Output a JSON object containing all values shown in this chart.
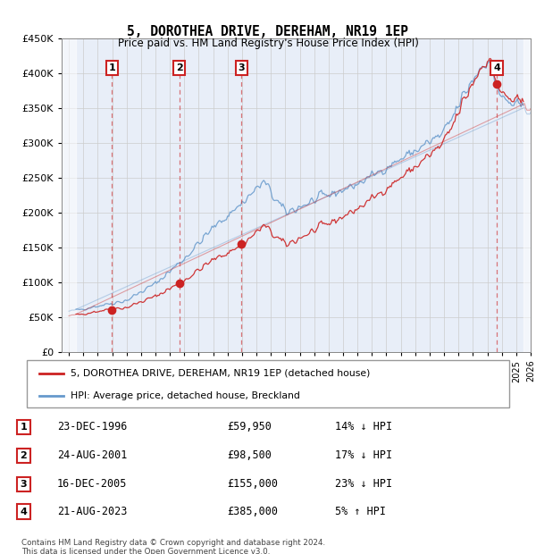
{
  "title": "5, DOROTHEA DRIVE, DEREHAM, NR19 1EP",
  "subtitle": "Price paid vs. HM Land Registry's House Price Index (HPI)",
  "xlim_start": 1993.5,
  "xlim_end": 2026.0,
  "ylim": [
    0,
    450000
  ],
  "yticks": [
    0,
    50000,
    100000,
    150000,
    200000,
    250000,
    300000,
    350000,
    400000,
    450000
  ],
  "ytick_labels": [
    "£0",
    "£50K",
    "£100K",
    "£150K",
    "£200K",
    "£250K",
    "£300K",
    "£350K",
    "£400K",
    "£450K"
  ],
  "sales": [
    {
      "date": 1996.98,
      "price": 59950,
      "label": "1",
      "hpi_pct": "14% ↓ HPI",
      "date_str": "23-DEC-1996",
      "price_str": "£59,950"
    },
    {
      "date": 2001.65,
      "price": 98500,
      "label": "2",
      "hpi_pct": "17% ↓ HPI",
      "date_str": "24-AUG-2001",
      "price_str": "£98,500"
    },
    {
      "date": 2005.96,
      "price": 155000,
      "label": "3",
      "hpi_pct": "23% ↓ HPI",
      "date_str": "16-DEC-2005",
      "price_str": "£155,000"
    },
    {
      "date": 2023.65,
      "price": 385000,
      "label": "4",
      "hpi_pct": "5% ↑ HPI",
      "date_str": "21-AUG-2023",
      "price_str": "£385,000"
    }
  ],
  "hpi_color": "#6699cc",
  "sale_color": "#cc2222",
  "grid_color": "#cccccc",
  "bg_color": "#e8eef8",
  "hatch_end": 1994.5,
  "hatch_start": 2025.5,
  "legend_line1": "5, DOROTHEA DRIVE, DEREHAM, NR19 1EP (detached house)",
  "legend_line2": "HPI: Average price, detached house, Breckland",
  "footnote1": "Contains HM Land Registry data © Crown copyright and database right 2024.",
  "footnote2": "This data is licensed under the Open Government Licence v3.0."
}
